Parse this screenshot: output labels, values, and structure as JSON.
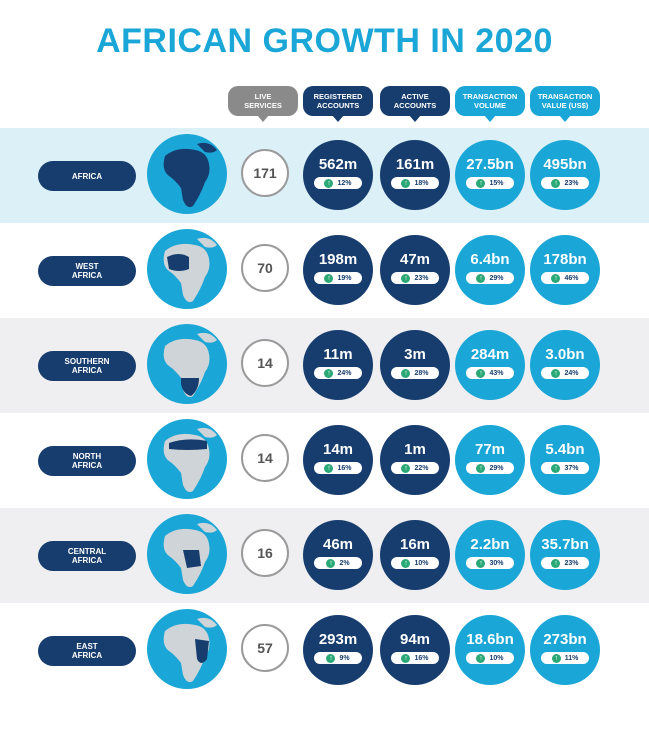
{
  "title": "AFRICAN GROWTH IN 2020",
  "headers": {
    "live": "LIVE\nSERVICES",
    "registered": "REGISTERED\nACCOUNTS",
    "active": "ACTIVE\nACCOUNTS",
    "volume": "TRANSACTION\nVOLUME",
    "value": "TRANSACTION\nVALUE (US$)"
  },
  "colors": {
    "navy": "#173d6e",
    "cyan": "#1aa6d6",
    "grey": "#8a8a8a",
    "green": "#2aa876",
    "ocean": "#1aa6d6",
    "land": "#cfd4d8"
  },
  "chart_data": {
    "type": "table",
    "title": "AFRICAN GROWTH IN 2020",
    "columns": [
      "LIVE SERVICES",
      "REGISTERED ACCOUNTS",
      "ACTIVE ACCOUNTS",
      "TRANSACTION VOLUME",
      "TRANSACTION VALUE (US$)"
    ],
    "rows": [
      {
        "region": "AFRICA",
        "live": "171",
        "registered": "562m",
        "registered_growth": "12%",
        "active": "161m",
        "active_growth": "18%",
        "volume": "27.5bn",
        "volume_growth": "15%",
        "value": "495bn",
        "value_growth": "23%"
      },
      {
        "region": "WEST\nAFRICA",
        "live": "70",
        "registered": "198m",
        "registered_growth": "19%",
        "active": "47m",
        "active_growth": "23%",
        "volume": "6.4bn",
        "volume_growth": "29%",
        "value": "178bn",
        "value_growth": "46%"
      },
      {
        "region": "SOUTHERN\nAFRICA",
        "live": "14",
        "registered": "11m",
        "registered_growth": "24%",
        "active": "3m",
        "active_growth": "28%",
        "volume": "284m",
        "volume_growth": "43%",
        "value": "3.0bn",
        "value_growth": "24%"
      },
      {
        "region": "NORTH\nAFRICA",
        "live": "14",
        "registered": "14m",
        "registered_growth": "16%",
        "active": "1m",
        "active_growth": "22%",
        "volume": "77m",
        "volume_growth": "29%",
        "value": "5.4bn",
        "value_growth": "37%"
      },
      {
        "region": "CENTRAL\nAFRICA",
        "live": "16",
        "registered": "46m",
        "registered_growth": "2%",
        "active": "16m",
        "active_growth": "10%",
        "volume": "2.2bn",
        "volume_growth": "30%",
        "value": "35.7bn",
        "value_growth": "23%"
      },
      {
        "region": "EAST\nAFRICA",
        "live": "57",
        "registered": "293m",
        "registered_growth": "9%",
        "active": "94m",
        "active_growth": "16%",
        "volume": "18.6bn",
        "volume_growth": "10%",
        "value": "273bn",
        "value_growth": "11%"
      }
    ]
  }
}
